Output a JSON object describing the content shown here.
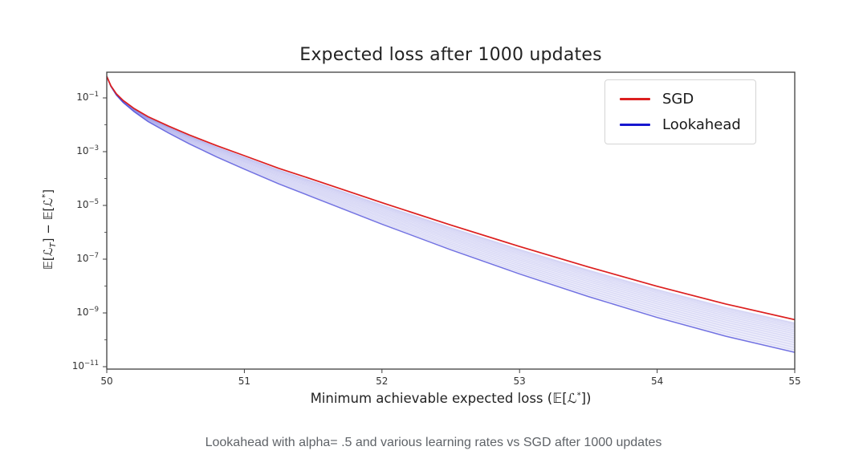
{
  "figure": {
    "title": "Expected loss after 1000 updates",
    "xlabel": {
      "pre": "Minimum achievable expected loss (𝔼[ℒ",
      "sup": "*",
      "post": "])"
    },
    "ylabel": {
      "pre": "𝔼[ℒ",
      "sub": "T",
      "mid": "] − 𝔼[ℒ",
      "sup": "*",
      "post": "]"
    },
    "legend": {
      "items": [
        {
          "label": "SGD",
          "color": "#dc1f1f"
        },
        {
          "label": "Lookahead",
          "color": "#1717cf"
        }
      ]
    }
  },
  "caption": "Lookahead with alpha= .5 and various learning rates vs SGD after 1000 updates",
  "chart_data": {
    "type": "line",
    "title": "Expected loss after 1000 updates",
    "xlabel": "Minimum achievable expected loss (E[L*])",
    "ylabel": "E[L_T] - E[L*]",
    "y_scale": "log",
    "grid": false,
    "legend_position": "upper right",
    "xlim": [
      50,
      55
    ],
    "ylim_log10": [
      -11.09,
      -0.045
    ],
    "x_ticks": [
      50,
      51,
      52,
      53,
      54,
      55
    ],
    "y_tick_exponents": [
      -1,
      -3,
      -5,
      -7,
      -9,
      -11
    ],
    "y_minor_tick_exponents": [
      -2,
      -4,
      -6,
      -8,
      -10
    ],
    "x": [
      50.0,
      50.03,
      50.07,
      50.12,
      50.2,
      50.3,
      50.45,
      50.6,
      50.8,
      51.0,
      51.25,
      51.5,
      52.0,
      52.5,
      53.0,
      53.5,
      54.0,
      54.5,
      55.0
    ],
    "series": [
      {
        "name": "SGD",
        "color": "#dc1f1f",
        "log10_y": [
          -0.2,
          -0.55,
          -0.85,
          -1.1,
          -1.4,
          -1.7,
          -2.05,
          -2.38,
          -2.78,
          -3.15,
          -3.62,
          -4.04,
          -4.9,
          -5.73,
          -6.53,
          -7.29,
          -8.01,
          -8.67,
          -9.25
        ]
      },
      {
        "name": "Lookahead",
        "color": "#1717cf",
        "description": "bundle of curves for various learning rates, alpha = 0.5; lower envelope given by log10_y, band spans from just below SGD down to lower envelope",
        "log10_y": [
          -0.2,
          -0.57,
          -0.9,
          -1.18,
          -1.52,
          -1.88,
          -2.31,
          -2.71,
          -3.2,
          -3.65,
          -4.2,
          -4.7,
          -5.7,
          -6.65,
          -7.55,
          -8.39,
          -9.17,
          -9.87,
          -10.47
        ],
        "band_gap_log10": [
          0.0,
          0.02,
          0.05,
          0.08,
          0.12,
          0.18,
          0.26,
          0.33,
          0.42,
          0.5,
          0.58,
          0.66,
          0.8,
          0.92,
          1.02,
          1.1,
          1.16,
          1.2,
          1.22
        ],
        "band_t_range": [
          0.1,
          1.0
        ],
        "band_t_power": 1.3,
        "n_band_curves": 16,
        "band_fill": "rgba(90,90,215,0.10)",
        "band_stroke": "rgba(70,70,210,0.12)"
      }
    ]
  }
}
